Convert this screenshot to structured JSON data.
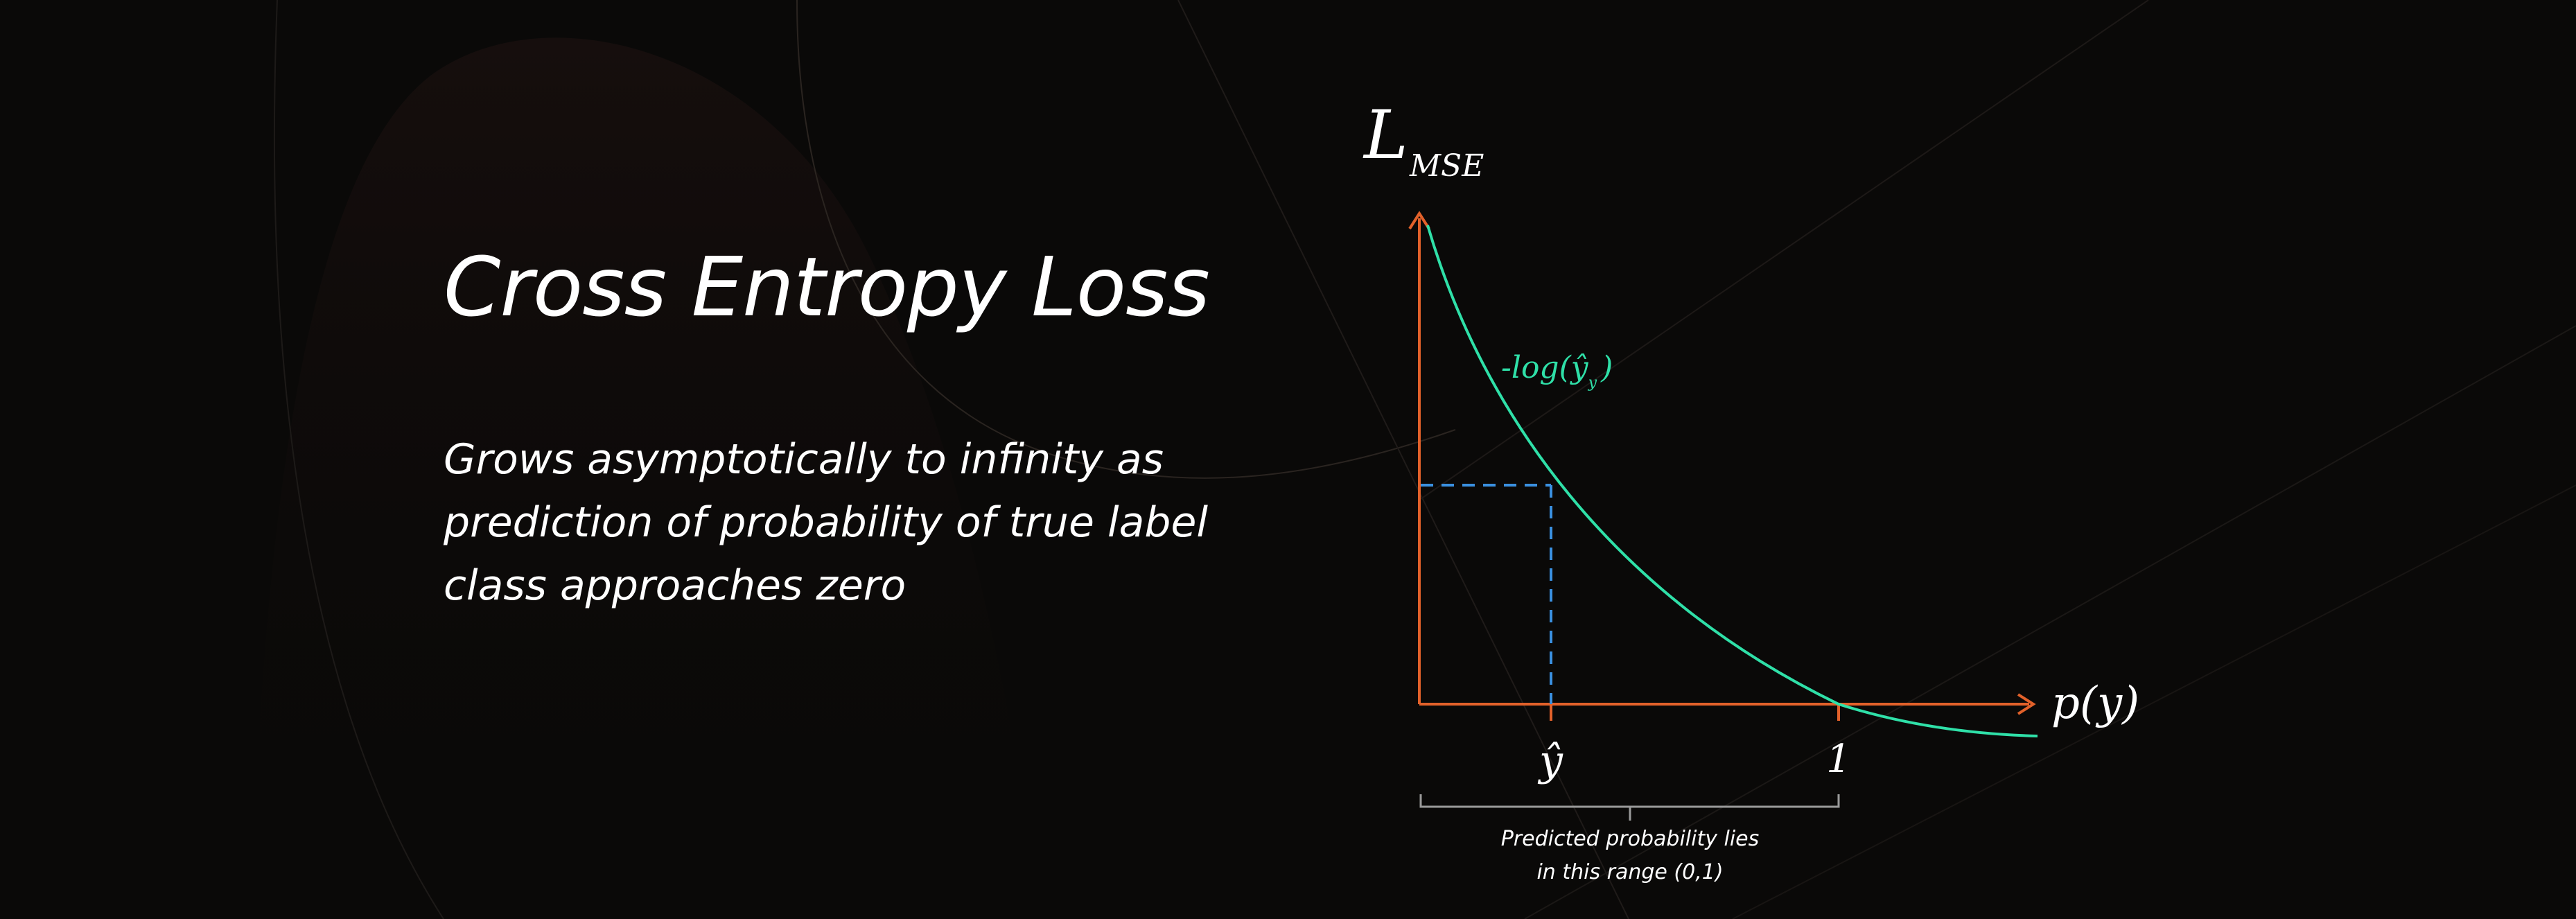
{
  "slide": {
    "title": "Cross Entropy Loss",
    "description_lines": [
      "Grows asymptotically to infinity as",
      "prediction of probability of true label",
      "class approaches zero"
    ]
  },
  "diagram": {
    "y_axis_label_main": "L",
    "y_axis_label_sub": "MSE",
    "x_axis_label": "p(y)",
    "curve_label": "-log(ŷ",
    "curve_label_sub": "y",
    "curve_label_close": ")",
    "tick_yhat": "ŷ",
    "tick_one": "1",
    "range_note_lines": [
      "Predicted probability lies",
      "in this range (0,1)"
    ],
    "colors": {
      "axis": "#e2612a",
      "curve": "#2fe0a8",
      "guide": "#3a90e0",
      "text": "#ffffff",
      "bracket": "#9a9a9a",
      "background": "#0a0908"
    },
    "icons": {
      "y_arrow": "arrow-up-icon",
      "x_arrow": "arrow-right-icon"
    }
  }
}
